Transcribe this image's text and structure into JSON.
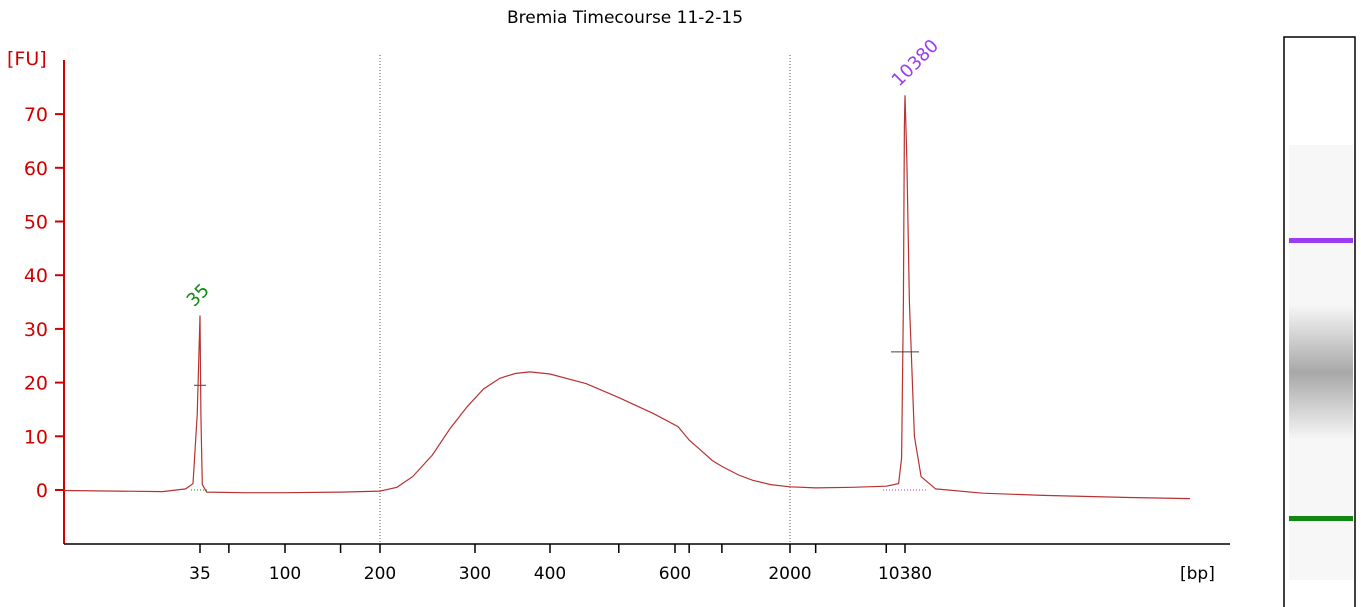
{
  "chart_data": {
    "type": "line",
    "title": "Bremia Timecourse 11-2-15",
    "y_unit": "[FU]",
    "x_unit": "[bp]",
    "ylim": [
      -10,
      78
    ],
    "y_ticks": [
      0,
      10,
      20,
      30,
      40,
      50,
      60,
      70
    ],
    "x_tick_labels": [
      "35",
      "100",
      "200",
      "300",
      "400",
      "600",
      "2000",
      "10380"
    ],
    "grid": false,
    "colors": {
      "axis": "#d10000",
      "trace": "#b83232",
      "lower_marker": "#118811",
      "upper_marker": "#9b3cf0"
    },
    "peaks": [
      {
        "label": "35",
        "bp": 35,
        "fu": 32.5,
        "color": "#118811"
      },
      {
        "label": "10380",
        "bp": 10380,
        "fu": 73.5,
        "color": "#9b3cf0"
      }
    ],
    "region_boundaries_bp": [
      200,
      2100
    ],
    "series": [
      {
        "points": [
          [
            20,
            -0.1
          ],
          [
            30,
            -0.3
          ],
          [
            33,
            0.2
          ],
          [
            34,
            1.2
          ],
          [
            34.6,
            14
          ],
          [
            35,
            32.5
          ],
          [
            35.4,
            14
          ],
          [
            36,
            1.0
          ],
          [
            38,
            -0.4
          ],
          [
            60,
            -0.5
          ],
          [
            100,
            -0.5
          ],
          [
            150,
            -0.4
          ],
          [
            200,
            -0.2
          ],
          [
            215,
            0.5
          ],
          [
            230,
            2.5
          ],
          [
            250,
            6.5
          ],
          [
            270,
            11.5
          ],
          [
            290,
            15.5
          ],
          [
            310,
            18.8
          ],
          [
            330,
            20.8
          ],
          [
            350,
            21.7
          ],
          [
            370,
            22.0
          ],
          [
            400,
            21.6
          ],
          [
            450,
            19.8
          ],
          [
            500,
            17.2
          ],
          [
            560,
            14.2
          ],
          [
            620,
            11.8
          ],
          [
            700,
            9.3
          ],
          [
            800,
            7.3
          ],
          [
            900,
            5.5
          ],
          [
            1000,
            4.4
          ],
          [
            1200,
            2.8
          ],
          [
            1400,
            1.8
          ],
          [
            1700,
            1.0
          ],
          [
            2100,
            0.6
          ],
          [
            3000,
            0.4
          ],
          [
            5000,
            0.5
          ],
          [
            8000,
            0.7
          ],
          [
            9500,
            1.2
          ],
          [
            9900,
            6
          ],
          [
            10150,
            35
          ],
          [
            10300,
            68
          ],
          [
            10380,
            73.5
          ],
          [
            10470,
            62
          ],
          [
            10600,
            35
          ],
          [
            10850,
            10
          ],
          [
            11200,
            2.5
          ],
          [
            12000,
            0.2
          ],
          [
            15000,
            -0.6
          ],
          [
            20000,
            -1.0
          ],
          [
            30000,
            -1.4
          ],
          [
            40000,
            -1.6
          ]
        ]
      }
    ]
  },
  "gel": {
    "bands": [
      {
        "name": "upper-marker",
        "color": "#9b3cf0"
      },
      {
        "name": "lower-marker",
        "color": "#118811"
      }
    ]
  }
}
